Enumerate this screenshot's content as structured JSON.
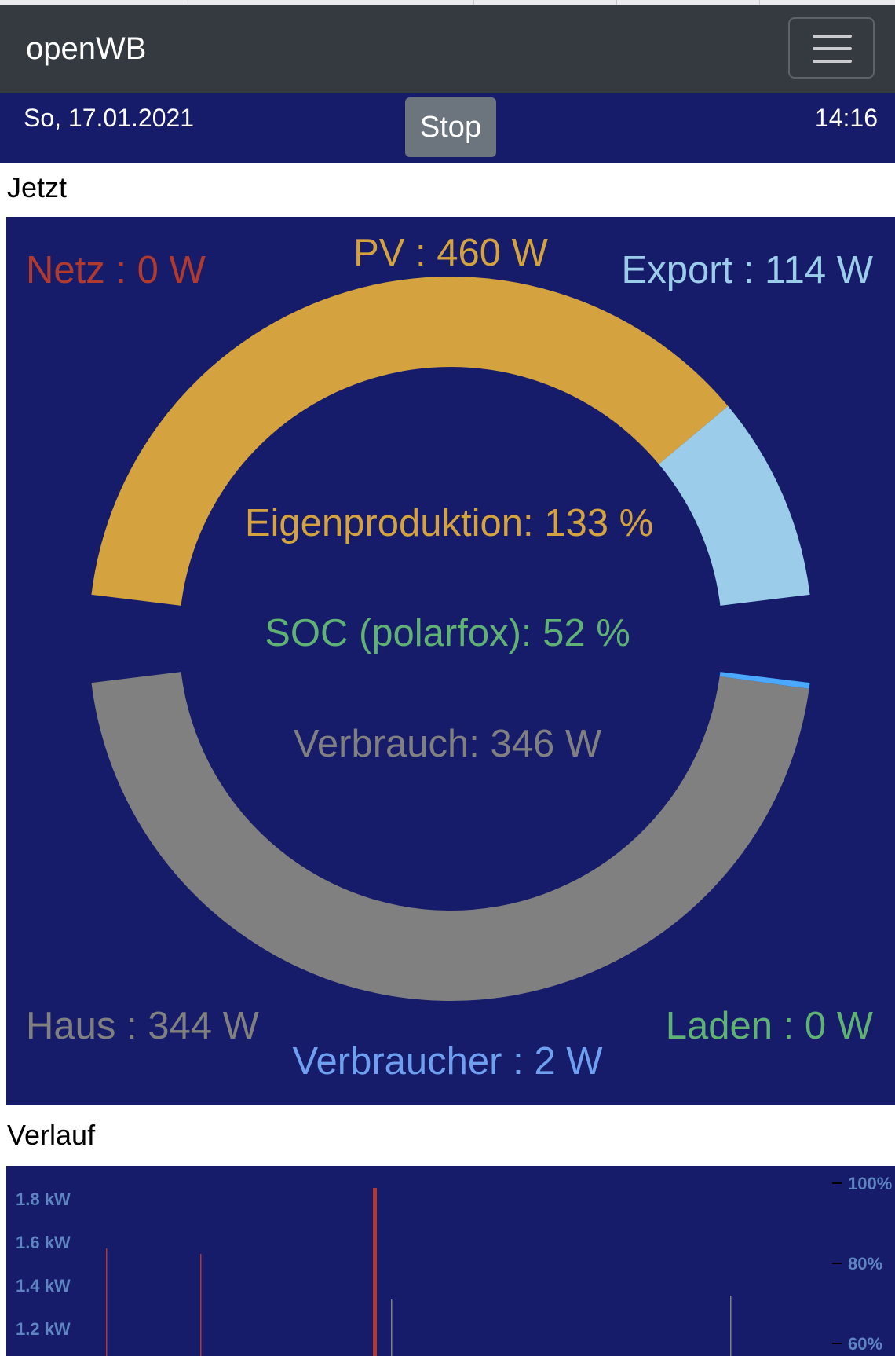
{
  "app": {
    "title": "openWB"
  },
  "status_bar": {
    "date": "So, 17.01.2021",
    "stop_label": "Stop",
    "time": "14:16"
  },
  "sections": {
    "now_title": "Jetzt",
    "history_title": "Verlauf"
  },
  "colors": {
    "grid": "#b03a2e",
    "pv": "#d4a33f",
    "export": "#9bcdea",
    "house": "#808080",
    "consumers": "#6f9fef",
    "charging": "#5fb273",
    "soc": "#5fb273",
    "panel_bg": "#161b6a"
  },
  "power_overview": {
    "netz": "Netz : 0 W",
    "pv": "PV : 460 W",
    "export": "Export : 114 W",
    "eigenproduktion": "Eigenproduktion: 133 %",
    "soc": "SOC (polarfox): 52 %",
    "verbrauch": "Verbrauch: 346 W",
    "haus": "Haus : 344 W",
    "laden": "Laden : 0 W",
    "verbraucher": "Verbraucher : 2 W"
  },
  "chart_data": {
    "type": "pie",
    "upper_half": [
      {
        "label": "PV",
        "value": 460,
        "color": "#d4a33f"
      },
      {
        "label": "Export",
        "value": 114,
        "color": "#9bcdea"
      }
    ],
    "lower_half": [
      {
        "label": "Haus",
        "value": 344,
        "color": "#808080"
      },
      {
        "label": "Verbraucher",
        "value": 2,
        "color": "#4aa8ff"
      }
    ]
  },
  "history_chart": {
    "type": "line",
    "y_left_ticks": [
      "1.8 kW",
      "1.6 kW",
      "1.4 kW",
      "1.2 kW"
    ],
    "y_right_ticks": [
      "100%",
      "80%",
      "60%"
    ]
  }
}
